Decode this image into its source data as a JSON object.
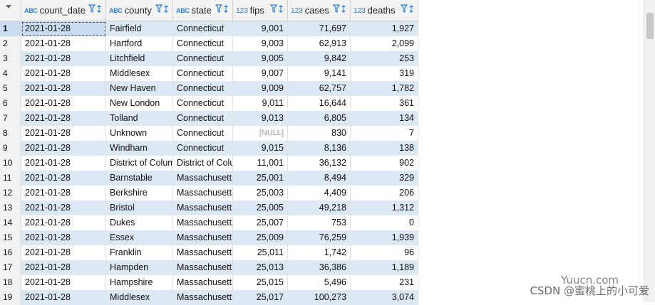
{
  "columns": [
    {
      "name": "count_date",
      "type": "ABC"
    },
    {
      "name": "county",
      "type": "ABC"
    },
    {
      "name": "state",
      "type": "ABC"
    },
    {
      "name": "fips",
      "type": "123"
    },
    {
      "name": "cases",
      "type": "123"
    },
    {
      "name": "deaths",
      "type": "123"
    }
  ],
  "rows": [
    [
      "1",
      "2021-01-28",
      "Fairfield",
      "Connecticut",
      "9,001",
      "71,697",
      "1,927"
    ],
    [
      "2",
      "2021-01-28",
      "Hartford",
      "Connecticut",
      "9,003",
      "62,913",
      "2,099"
    ],
    [
      "3",
      "2021-01-28",
      "Litchfield",
      "Connecticut",
      "9,005",
      "9,842",
      "253"
    ],
    [
      "4",
      "2021-01-28",
      "Middlesex",
      "Connecticut",
      "9,007",
      "9,141",
      "319"
    ],
    [
      "5",
      "2021-01-28",
      "New Haven",
      "Connecticut",
      "9,009",
      "62,757",
      "1,782"
    ],
    [
      "6",
      "2021-01-28",
      "New London",
      "Connecticut",
      "9,011",
      "16,644",
      "361"
    ],
    [
      "7",
      "2021-01-28",
      "Tolland",
      "Connecticut",
      "9,013",
      "6,805",
      "134"
    ],
    [
      "8",
      "2021-01-28",
      "Unknown",
      "Connecticut",
      "[NULL]",
      "830",
      "7"
    ],
    [
      "9",
      "2021-01-28",
      "Windham",
      "Connecticut",
      "9,015",
      "8,136",
      "138"
    ],
    [
      "10",
      "2021-01-28",
      "District of Columbia",
      "District of Columbia",
      "11,001",
      "36,132",
      "902"
    ],
    [
      "11",
      "2021-01-28",
      "Barnstable",
      "Massachusetts",
      "25,001",
      "8,494",
      "329"
    ],
    [
      "12",
      "2021-01-28",
      "Berkshire",
      "Massachusetts",
      "25,003",
      "4,409",
      "206"
    ],
    [
      "13",
      "2021-01-28",
      "Bristol",
      "Massachusetts",
      "25,005",
      "49,218",
      "1,312"
    ],
    [
      "14",
      "2021-01-28",
      "Dukes",
      "Massachusetts",
      "25,007",
      "753",
      "0"
    ],
    [
      "15",
      "2021-01-28",
      "Essex",
      "Massachusetts",
      "25,009",
      "76,259",
      "1,939"
    ],
    [
      "16",
      "2021-01-28",
      "Franklin",
      "Massachusetts",
      "25,011",
      "1,742",
      "96"
    ],
    [
      "17",
      "2021-01-28",
      "Hampden",
      "Massachusetts",
      "25,013",
      "36,386",
      "1,189"
    ],
    [
      "18",
      "2021-01-28",
      "Hampshire",
      "Massachusetts",
      "25,015",
      "5,496",
      "231"
    ],
    [
      "19",
      "2021-01-28",
      "Middlesex",
      "Massachusetts",
      "25,017",
      "100,273",
      "3,074"
    ]
  ],
  "watermark": "CSDN @蜜桃上的小可爱",
  "watermark2": "Yuucn.com"
}
